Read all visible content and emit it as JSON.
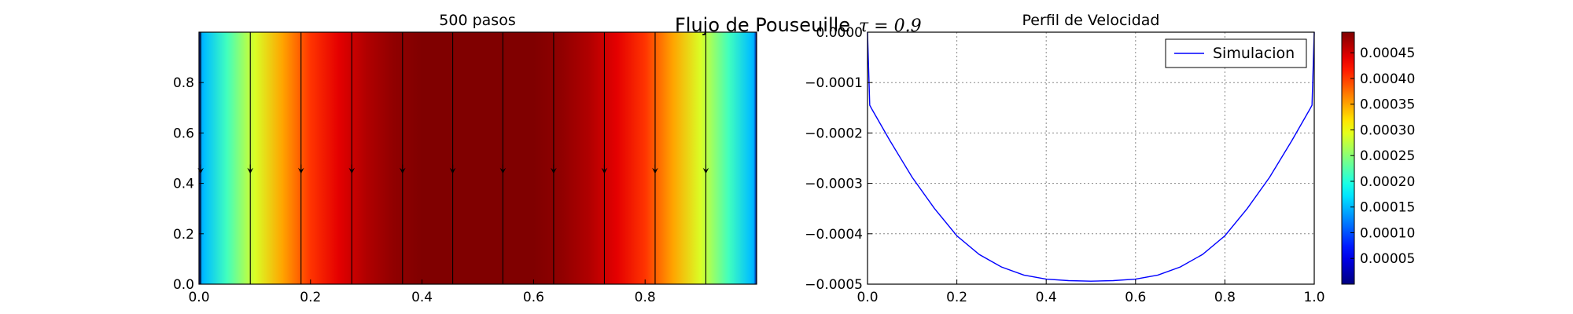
{
  "suptitle": "Flujo de Pouseuille",
  "suptitle_math": "τ = 0.9",
  "chart_data": [
    {
      "type": "heatmap",
      "title": "500 pasos",
      "description_free": true,
      "xlim": [
        0.0,
        1.0
      ],
      "ylim": [
        0.0,
        1.0
      ],
      "xticks": [
        "0.0",
        "0.2",
        "0.4",
        "0.6",
        "0.8"
      ],
      "yticks": [
        "0.0",
        "0.2",
        "0.4",
        "0.6",
        "0.8"
      ],
      "field_max": 0.00049,
      "streamline_x": [
        0.003,
        0.092,
        0.183,
        0.274,
        0.365,
        0.455,
        0.545,
        0.636,
        0.727,
        0.818,
        0.909
      ],
      "arrow_y": 0.45,
      "colormap": "jet"
    },
    {
      "type": "line",
      "title": "Perfil de Velocidad",
      "xlim": [
        0.0,
        1.0
      ],
      "ylim": [
        -0.0005,
        0.0
      ],
      "xticks": [
        "0.0",
        "0.2",
        "0.4",
        "0.6",
        "0.8",
        "1.0"
      ],
      "yticks": [
        "0.0000",
        "−0.0001",
        "−0.0002",
        "−0.0003",
        "−0.0004",
        "−0.0005"
      ],
      "grid": true,
      "legend_position": "upper right",
      "series": [
        {
          "name": "Simulacion",
          "color": "#0000ff",
          "x": [
            0.0,
            0.005,
            0.01,
            0.05,
            0.1,
            0.15,
            0.2,
            0.25,
            0.3,
            0.35,
            0.4,
            0.45,
            0.5,
            0.55,
            0.6,
            0.65,
            0.7,
            0.75,
            0.8,
            0.85,
            0.9,
            0.95,
            0.99,
            0.995,
            1.0
          ],
          "y": [
            0.0,
            -0.000145,
            -0.000153,
            -0.000215,
            -0.000288,
            -0.00035,
            -0.000404,
            -0.000441,
            -0.000466,
            -0.000482,
            -0.00049,
            -0.000493,
            -0.000494,
            -0.000493,
            -0.00049,
            -0.000482,
            -0.000466,
            -0.000441,
            -0.000404,
            -0.00035,
            -0.000288,
            -0.000215,
            -0.000153,
            -0.000145,
            0.0
          ]
        }
      ]
    },
    {
      "type": "heatmap",
      "title": "",
      "colorbar": true,
      "colormap": "jet",
      "range": [
        0.0,
        0.00049
      ],
      "ticks": [
        "0.00005",
        "0.00010",
        "0.00015",
        "0.00020",
        "0.00025",
        "0.00030",
        "0.00035",
        "0.00040",
        "0.00045"
      ],
      "tick_values": [
        5e-05,
        0.0001,
        0.00015,
        0.0002,
        0.00025,
        0.0003,
        0.00035,
        0.0004,
        0.00045
      ]
    }
  ],
  "colors": {
    "axis": "#000000",
    "grid": "#888888",
    "line": "#0000ff"
  }
}
